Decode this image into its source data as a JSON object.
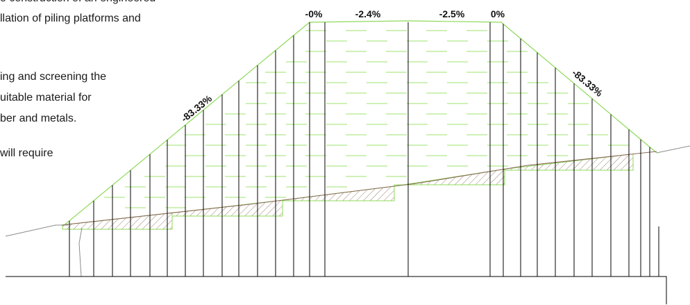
{
  "document_text": {
    "line_1": "o construction of an engineered",
    "line_2": "llation of piling platforms and",
    "line_3": "ing and screening the",
    "line_4": "uitable material for",
    "line_5": "ber and metals.",
    "line_6": "will require"
  },
  "section": {
    "grade_labels": {
      "top_1": "-0%",
      "top_2": "-2.4%",
      "top_3": "-2.5%",
      "top_4": "0%",
      "left_slope": "-83.33%",
      "right_slope": "-83.33%"
    },
    "colors": {
      "fill_outline": "#8fd95a",
      "fill_hatch": "#9ee36c",
      "ground_line": "#8a6a5a",
      "existing_ground": "#8c8c8c",
      "cut_hatch": "#a08070",
      "verticals": "#000000",
      "datum": "#000000"
    }
  }
}
